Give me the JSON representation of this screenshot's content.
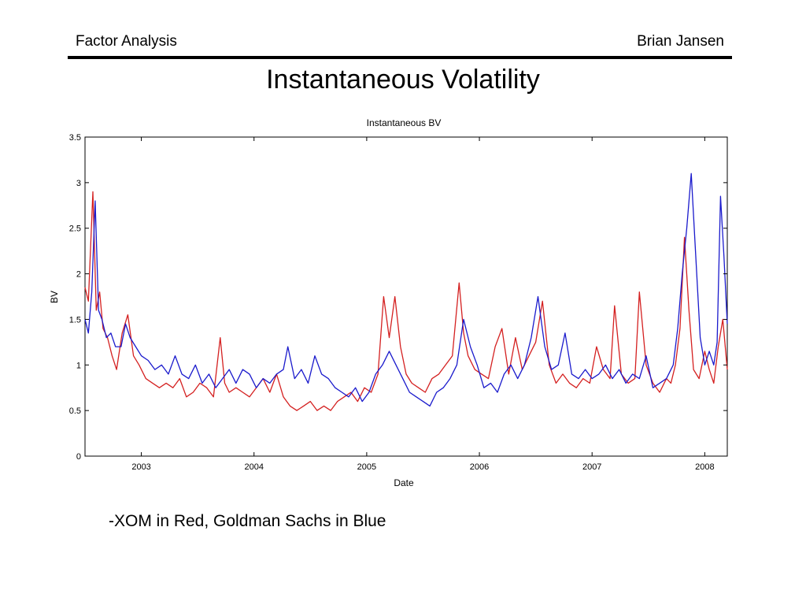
{
  "header": {
    "left": "Factor Analysis",
    "right": "Brian Jansen"
  },
  "slide_title": "Instantaneous Volatility",
  "caption": "-XOM in Red, Goldman Sachs in Blue",
  "chart_data": {
    "type": "line",
    "title": "Instantaneous BV",
    "xlabel": "Date",
    "ylabel": "BV",
    "xlim": [
      2002.5,
      2008.2
    ],
    "ylim": [
      0,
      3.5
    ],
    "xticks": [
      2003,
      2004,
      2005,
      2006,
      2007,
      2008
    ],
    "xtick_labels": [
      "2003",
      "2004",
      "2005",
      "2006",
      "2007",
      "2008"
    ],
    "yticks": [
      0,
      0.5,
      1,
      1.5,
      2,
      2.5,
      3,
      3.5
    ],
    "ytick_labels": [
      "0",
      "0.5",
      "1",
      "1.5",
      "2",
      "2.5",
      "3",
      "3.5"
    ],
    "grid": false,
    "series": [
      {
        "color": "#d42020",
        "x": [
          2002.5,
          2002.53,
          2002.57,
          2002.6,
          2002.63,
          2002.66,
          2002.7,
          2002.74,
          2002.78,
          2002.83,
          2002.88,
          2002.93,
          2002.98,
          2003.04,
          2003.1,
          2003.16,
          2003.22,
          2003.28,
          2003.34,
          2003.4,
          2003.46,
          2003.52,
          2003.58,
          2003.64,
          2003.7,
          2003.74,
          2003.78,
          2003.84,
          2003.9,
          2003.96,
          2004.02,
          2004.08,
          2004.14,
          2004.2,
          2004.26,
          2004.32,
          2004.38,
          2004.44,
          2004.5,
          2004.56,
          2004.62,
          2004.68,
          2004.74,
          2004.8,
          2004.86,
          2004.92,
          2004.98,
          2005.04,
          2005.1,
          2005.15,
          2005.2,
          2005.25,
          2005.3,
          2005.35,
          2005.4,
          2005.46,
          2005.52,
          2005.58,
          2005.64,
          2005.7,
          2005.76,
          2005.82,
          2005.86,
          2005.9,
          2005.96,
          2006.02,
          2006.08,
          2006.14,
          2006.2,
          2006.26,
          2006.32,
          2006.38,
          2006.44,
          2006.5,
          2006.56,
          2006.62,
          2006.68,
          2006.74,
          2006.8,
          2006.86,
          2006.92,
          2006.98,
          2007.04,
          2007.1,
          2007.16,
          2007.2,
          2007.26,
          2007.32,
          2007.38,
          2007.42,
          2007.48,
          2007.54,
          2007.6,
          2007.66,
          2007.7,
          2007.74,
          2007.78,
          2007.82,
          2007.86,
          2007.9,
          2007.95,
          2008.0,
          2008.04,
          2008.08,
          2008.12,
          2008.16,
          2008.2
        ],
        "y": [
          1.85,
          1.7,
          2.9,
          1.6,
          1.8,
          1.4,
          1.3,
          1.1,
          0.95,
          1.35,
          1.55,
          1.1,
          1.0,
          0.85,
          0.8,
          0.75,
          0.8,
          0.75,
          0.85,
          0.65,
          0.7,
          0.8,
          0.75,
          0.65,
          1.3,
          0.8,
          0.7,
          0.75,
          0.7,
          0.65,
          0.75,
          0.85,
          0.7,
          0.9,
          0.65,
          0.55,
          0.5,
          0.55,
          0.6,
          0.5,
          0.55,
          0.5,
          0.6,
          0.65,
          0.7,
          0.6,
          0.75,
          0.7,
          0.9,
          1.75,
          1.3,
          1.75,
          1.2,
          0.9,
          0.8,
          0.75,
          0.7,
          0.85,
          0.9,
          1.0,
          1.1,
          1.9,
          1.35,
          1.1,
          0.95,
          0.9,
          0.85,
          1.2,
          1.4,
          0.9,
          1.3,
          0.95,
          1.1,
          1.25,
          1.7,
          1.0,
          0.8,
          0.9,
          0.8,
          0.75,
          0.85,
          0.8,
          1.2,
          0.95,
          0.85,
          1.65,
          0.9,
          0.8,
          0.85,
          1.8,
          1.0,
          0.8,
          0.7,
          0.85,
          0.8,
          1.0,
          1.4,
          2.4,
          1.6,
          0.95,
          0.85,
          1.15,
          0.95,
          0.8,
          1.2,
          1.5,
          0.95
        ]
      },
      {
        "color": "#1a1acc",
        "x": [
          2002.5,
          2002.53,
          2002.56,
          2002.59,
          2002.62,
          2002.65,
          2002.69,
          2002.73,
          2002.77,
          2002.82,
          2002.86,
          2002.9,
          2002.95,
          2003.0,
          2003.06,
          2003.12,
          2003.18,
          2003.24,
          2003.3,
          2003.36,
          2003.42,
          2003.48,
          2003.54,
          2003.6,
          2003.66,
          2003.72,
          2003.78,
          2003.84,
          2003.9,
          2003.96,
          2004.02,
          2004.08,
          2004.14,
          2004.2,
          2004.26,
          2004.3,
          2004.36,
          2004.42,
          2004.48,
          2004.54,
          2004.6,
          2004.66,
          2004.72,
          2004.78,
          2004.84,
          2004.9,
          2004.96,
          2005.02,
          2005.08,
          2005.14,
          2005.2,
          2005.26,
          2005.32,
          2005.38,
          2005.44,
          2005.5,
          2005.56,
          2005.62,
          2005.68,
          2005.74,
          2005.8,
          2005.86,
          2005.92,
          2005.98,
          2006.04,
          2006.1,
          2006.16,
          2006.22,
          2006.28,
          2006.34,
          2006.4,
          2006.46,
          2006.52,
          2006.58,
          2006.64,
          2006.7,
          2006.76,
          2006.82,
          2006.88,
          2006.94,
          2007.0,
          2007.06,
          2007.12,
          2007.18,
          2007.24,
          2007.3,
          2007.36,
          2007.42,
          2007.48,
          2007.54,
          2007.6,
          2007.66,
          2007.72,
          2007.76,
          2007.8,
          2007.84,
          2007.88,
          2007.92,
          2007.96,
          2008.0,
          2008.04,
          2008.08,
          2008.11,
          2008.14,
          2008.17,
          2008.2
        ],
        "y": [
          1.5,
          1.35,
          1.8,
          2.8,
          1.6,
          1.5,
          1.3,
          1.35,
          1.2,
          1.2,
          1.45,
          1.3,
          1.2,
          1.1,
          1.05,
          0.95,
          1.0,
          0.9,
          1.1,
          0.9,
          0.85,
          1.0,
          0.8,
          0.9,
          0.75,
          0.85,
          0.95,
          0.8,
          0.95,
          0.9,
          0.75,
          0.85,
          0.8,
          0.9,
          0.95,
          1.2,
          0.85,
          0.95,
          0.8,
          1.1,
          0.9,
          0.85,
          0.75,
          0.7,
          0.65,
          0.75,
          0.6,
          0.7,
          0.9,
          1.0,
          1.15,
          1.0,
          0.85,
          0.7,
          0.65,
          0.6,
          0.55,
          0.7,
          0.75,
          0.85,
          1.0,
          1.5,
          1.2,
          1.0,
          0.75,
          0.8,
          0.7,
          0.9,
          1.0,
          0.85,
          1.0,
          1.3,
          1.75,
          1.2,
          0.95,
          1.0,
          1.35,
          0.9,
          0.85,
          0.95,
          0.85,
          0.9,
          1.0,
          0.85,
          0.95,
          0.8,
          0.9,
          0.85,
          1.1,
          0.75,
          0.8,
          0.85,
          1.0,
          1.4,
          2.0,
          2.5,
          3.1,
          2.2,
          1.3,
          1.0,
          1.15,
          1.0,
          1.25,
          2.85,
          2.2,
          1.45
        ]
      }
    ]
  }
}
